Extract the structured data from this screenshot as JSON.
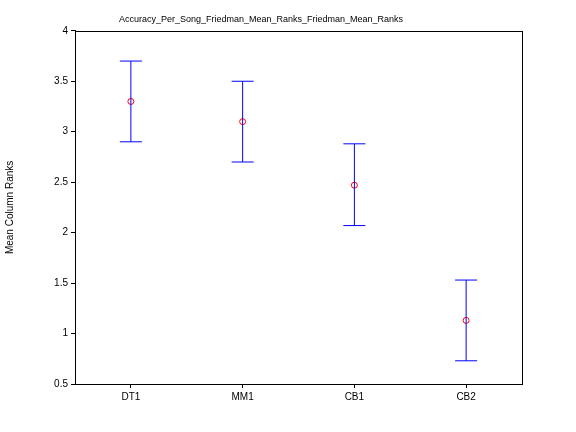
{
  "chart_data": {
    "type": "errorbar",
    "title": "Accuracy_Per_Song_Friedman_Mean_Ranks_Friedman_Mean_Ranks",
    "y_label": "Mean Column Ranks",
    "categories": [
      "DT1",
      "MM1",
      "CB1",
      "CB2"
    ],
    "values": [
      3.3,
      3.1,
      2.47,
      1.13
    ],
    "error_lower": [
      2.9,
      2.7,
      2.07,
      0.73
    ],
    "error_upper": [
      3.7,
      3.5,
      2.88,
      1.53
    ],
    "color": "#0000ff",
    "marker": "circle",
    "ylim": [
      0.5,
      4
    ],
    "yticks": [
      0.5,
      1,
      1.5,
      2,
      2.5,
      3,
      3.5,
      4
    ],
    "grid": false
  }
}
